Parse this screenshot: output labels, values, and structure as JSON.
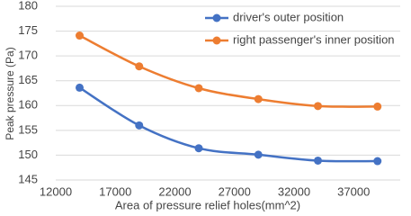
{
  "chart_data": {
    "type": "line",
    "x_label": "Area of pressure relief holes(mm^2)",
    "y_label": "Peak pressure (Pa)",
    "x": [
      14000,
      19000,
      24000,
      29000,
      34000,
      39000
    ],
    "series": [
      {
        "name": "driver's outer position",
        "color": "#4472c4",
        "values": [
          163.6,
          156,
          151.4,
          150.1,
          148.9,
          148.8
        ]
      },
      {
        "name": "right passenger's inner position",
        "color": "#ed7d31",
        "values": [
          174.1,
          167.9,
          163.5,
          161.3,
          159.9,
          159.8
        ]
      }
    ],
    "xlim": [
      12000,
      40000
    ],
    "xticks": [
      12000,
      17000,
      22000,
      27000,
      32000,
      37000
    ],
    "ylim": [
      145,
      180
    ],
    "yticks": [
      145,
      150,
      155,
      160,
      165,
      170,
      175,
      180
    ],
    "grid": true,
    "legend": "upper right"
  }
}
